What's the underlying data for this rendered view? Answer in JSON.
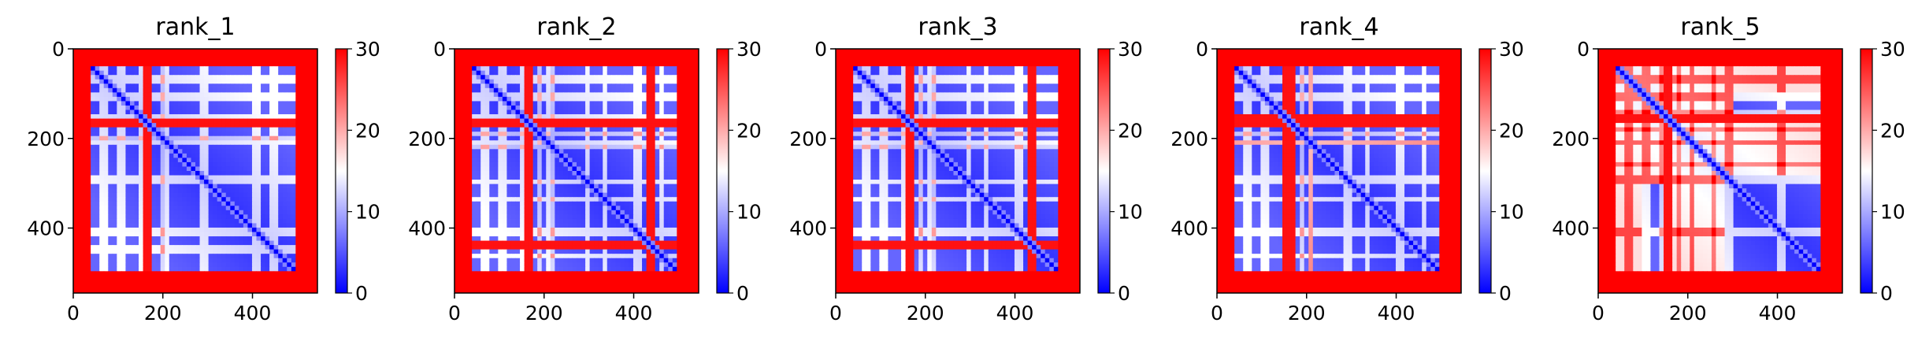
{
  "colors": {
    "low": "#0000ff",
    "mid": "#ffffff",
    "high": "#ff0000",
    "axis": "#000000"
  },
  "colormap": "bwr",
  "chart_data": [
    {
      "type": "heatmap",
      "title": "rank_1",
      "xlim": [
        0,
        545
      ],
      "ylim": [
        545,
        0
      ],
      "xticks": [
        0,
        200,
        400
      ],
      "yticks": [
        0,
        200,
        400
      ],
      "colorbar": {
        "min": 0,
        "max": 30,
        "ticks": [
          0,
          10,
          20,
          30
        ]
      },
      "profile": {
        "ends": [
          40,
          45
        ],
        "bands": [
          [
            60,
            75
          ],
          [
            100,
            120
          ],
          [
            150,
            165
          ],
          [
            200,
            210
          ],
          [
            280,
            300
          ],
          [
            400,
            420
          ],
          [
            440,
            455
          ]
        ],
        "hot_bands": [
          [
            160,
            178
          ]
        ],
        "stripes": [
          160,
          200
        ],
        "bright_blocks": []
      }
    },
    {
      "type": "heatmap",
      "title": "rank_2",
      "xlim": [
        0,
        545
      ],
      "ylim": [
        545,
        0
      ],
      "xticks": [
        0,
        200,
        400
      ],
      "yticks": [
        0,
        200,
        400
      ],
      "colorbar": {
        "min": 0,
        "max": 30,
        "ticks": [
          0,
          10,
          20,
          30
        ]
      },
      "profile": {
        "ends": [
          40,
          45
        ],
        "bands": [
          [
            60,
            75
          ],
          [
            100,
            120
          ],
          [
            150,
            165
          ],
          [
            200,
            215
          ],
          [
            290,
            305
          ],
          [
            330,
            345
          ],
          [
            400,
            420
          ],
          [
            460,
            470
          ]
        ],
        "hot_bands": [
          [
            160,
            178
          ],
          [
            430,
            445
          ]
        ],
        "stripes": [
          190,
          220
        ],
        "bright_blocks": []
      }
    },
    {
      "type": "heatmap",
      "title": "rank_3",
      "xlim": [
        0,
        545
      ],
      "ylim": [
        545,
        0
      ],
      "xticks": [
        0,
        200,
        400
      ],
      "yticks": [
        0,
        200,
        400
      ],
      "colorbar": {
        "min": 0,
        "max": 30,
        "ticks": [
          0,
          10,
          20,
          30
        ]
      },
      "profile": {
        "ends": [
          40,
          45
        ],
        "bands": [
          [
            60,
            75
          ],
          [
            100,
            120
          ],
          [
            150,
            165
          ],
          [
            200,
            215
          ],
          [
            290,
            305
          ],
          [
            330,
            345
          ],
          [
            400,
            420
          ]
        ],
        "hot_bands": [
          [
            160,
            178
          ],
          [
            430,
            445
          ]
        ],
        "stripes": [
          190,
          220
        ],
        "bright_blocks": []
      }
    },
    {
      "type": "heatmap",
      "title": "rank_4",
      "xlim": [
        0,
        545
      ],
      "ylim": [
        545,
        0
      ],
      "xticks": [
        0,
        200,
        400
      ],
      "yticks": [
        0,
        200,
        400
      ],
      "colorbar": {
        "min": 0,
        "max": 30,
        "ticks": [
          0,
          10,
          20,
          30
        ]
      },
      "profile": {
        "ends": [
          40,
          45
        ],
        "bands": [
          [
            60,
            75
          ],
          [
            100,
            120
          ],
          [
            200,
            215
          ],
          [
            280,
            300
          ],
          [
            330,
            345
          ],
          [
            400,
            420
          ],
          [
            455,
            470
          ]
        ],
        "hot_bands": [
          [
            150,
            175
          ]
        ],
        "stripes": [
          190,
          210
        ],
        "bright_blocks": []
      }
    },
    {
      "type": "heatmap",
      "title": "rank_5",
      "xlim": [
        0,
        545
      ],
      "ylim": [
        545,
        0
      ],
      "xticks": [
        0,
        200,
        400
      ],
      "yticks": [
        0,
        200,
        400
      ],
      "colorbar": {
        "min": 0,
        "max": 30,
        "ticks": [
          0,
          10,
          20,
          30
        ]
      },
      "profile": {
        "ends": [
          40,
          50
        ],
        "bands": [
          [
            60,
            75
          ],
          [
            100,
            120
          ],
          [
            200,
            215
          ],
          [
            280,
            300
          ],
          [
            400,
            420
          ]
        ],
        "hot_bands": [
          [
            150,
            170
          ]
        ],
        "stripes": [
          140,
          180,
          260
        ],
        "bright_blocks": [
          [
            40,
            300,
            40,
            300
          ],
          [
            300,
            500,
            40,
            100
          ],
          [
            300,
            500,
            160,
            280
          ],
          [
            40,
            100,
            300,
            500
          ],
          [
            160,
            280,
            300,
            500
          ]
        ]
      }
    }
  ]
}
